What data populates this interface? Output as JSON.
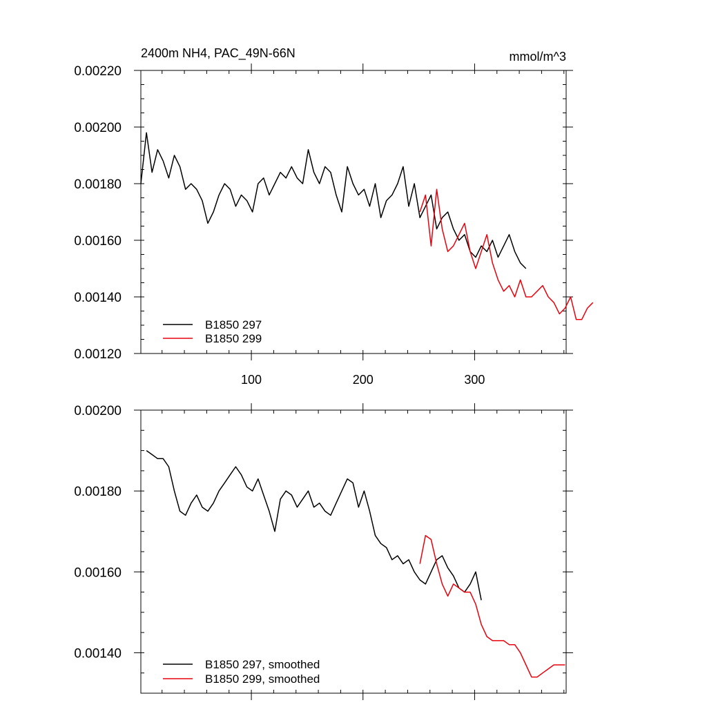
{
  "figure": {
    "title_left": "2400m NH4, PAC_49N-66N",
    "title_right": "mmol/m^3"
  },
  "colors": {
    "run297": "#000000",
    "run299": "#e8000b",
    "frame": "#000000"
  },
  "chart_data": [
    {
      "type": "line",
      "title": "2400m NH4, PAC_49N-66N",
      "units": "mmol/m^3",
      "xlim": [
        1,
        382
      ],
      "ylim": [
        0.0012,
        0.0022
      ],
      "x_ticks": [
        100,
        200,
        300
      ],
      "x_tick_labels": [
        "100",
        "200",
        "300"
      ],
      "y_ticks": [
        0.0012,
        0.0014,
        0.0016,
        0.0018,
        0.002,
        0.0022
      ],
      "y_tick_labels": [
        "0.00120",
        "0.00140",
        "0.00160",
        "0.00180",
        "0.00200",
        "0.00220"
      ],
      "grid": false,
      "legend": "bottom-left",
      "series": [
        {
          "name": "B1850 297",
          "color": "#000000",
          "x_start": 1,
          "x_step": 5,
          "values": [
            0.0018,
            0.00198,
            0.00184,
            0.00192,
            0.00188,
            0.00182,
            0.0019,
            0.00186,
            0.00178,
            0.0018,
            0.00178,
            0.00174,
            0.00166,
            0.0017,
            0.00176,
            0.0018,
            0.00178,
            0.00172,
            0.00176,
            0.00174,
            0.0017,
            0.0018,
            0.00182,
            0.00176,
            0.0018,
            0.00184,
            0.00182,
            0.00186,
            0.00182,
            0.0018,
            0.00192,
            0.00184,
            0.0018,
            0.00186,
            0.00184,
            0.00176,
            0.0017,
            0.00186,
            0.0018,
            0.00176,
            0.00178,
            0.00172,
            0.0018,
            0.00168,
            0.00174,
            0.00176,
            0.0018,
            0.00186,
            0.00172,
            0.0018,
            0.00168,
            0.00172,
            0.00176,
            0.00164,
            0.00168,
            0.0017,
            0.00164,
            0.0016,
            0.00162,
            0.00156,
            0.00154,
            0.00158,
            0.00156,
            0.0016,
            0.00154,
            0.00158,
            0.00162,
            0.00156,
            0.00152,
            0.0015
          ]
        },
        {
          "name": "B1850 299",
          "color": "#e8000b",
          "x_start": 251,
          "x_step": 5,
          "values": [
            0.0017,
            0.00176,
            0.00158,
            0.00178,
            0.00164,
            0.00156,
            0.00158,
            0.00162,
            0.00166,
            0.00156,
            0.0015,
            0.00156,
            0.00162,
            0.00152,
            0.00146,
            0.00142,
            0.00144,
            0.0014,
            0.00146,
            0.0014,
            0.0014,
            0.00142,
            0.00144,
            0.0014,
            0.00138,
            0.00134,
            0.00136,
            0.0014,
            0.00132,
            0.00132,
            0.00136,
            0.00138
          ]
        }
      ]
    },
    {
      "type": "line",
      "xlim": [
        1,
        382
      ],
      "ylim": [
        0.0013,
        0.002
      ],
      "x_ticks": [
        100,
        200,
        300
      ],
      "x_tick_labels": [],
      "y_ticks": [
        0.0014,
        0.0016,
        0.0018,
        0.002
      ],
      "y_tick_labels": [
        "0.00140",
        "0.00160",
        "0.00180",
        "0.00200"
      ],
      "grid": false,
      "legend": "bottom-left",
      "series": [
        {
          "name": "B1850 297, smoothed",
          "color": "#000000",
          "x_start": 6,
          "x_step": 5,
          "values": [
            0.0019,
            0.00189,
            0.00188,
            0.00188,
            0.00186,
            0.0018,
            0.00175,
            0.00174,
            0.00177,
            0.00179,
            0.00176,
            0.00175,
            0.00177,
            0.0018,
            0.00182,
            0.00184,
            0.00186,
            0.00184,
            0.00181,
            0.0018,
            0.00183,
            0.00179,
            0.00175,
            0.0017,
            0.00178,
            0.0018,
            0.00179,
            0.00176,
            0.00178,
            0.0018,
            0.00176,
            0.00177,
            0.00175,
            0.00174,
            0.00177,
            0.0018,
            0.00183,
            0.00182,
            0.00176,
            0.0018,
            0.00175,
            0.00169,
            0.00167,
            0.00166,
            0.00163,
            0.00164,
            0.00162,
            0.00163,
            0.0016,
            0.00158,
            0.00157,
            0.0016,
            0.00163,
            0.00164,
            0.00161,
            0.00159,
            0.00156,
            0.00155,
            0.00157,
            0.0016,
            0.00153
          ]
        },
        {
          "name": "B1850 299, smoothed",
          "color": "#e8000b",
          "x_start": 251,
          "x_step": 5,
          "values": [
            0.00162,
            0.00169,
            0.00168,
            0.00162,
            0.00157,
            0.00154,
            0.00157,
            0.00156,
            0.00155,
            0.00155,
            0.00152,
            0.00147,
            0.00144,
            0.00143,
            0.00143,
            0.00143,
            0.00142,
            0.00142,
            0.0014,
            0.00137,
            0.00134,
            0.00134,
            0.00135,
            0.00136,
            0.00137,
            0.00137,
            0.00137
          ]
        }
      ]
    }
  ]
}
